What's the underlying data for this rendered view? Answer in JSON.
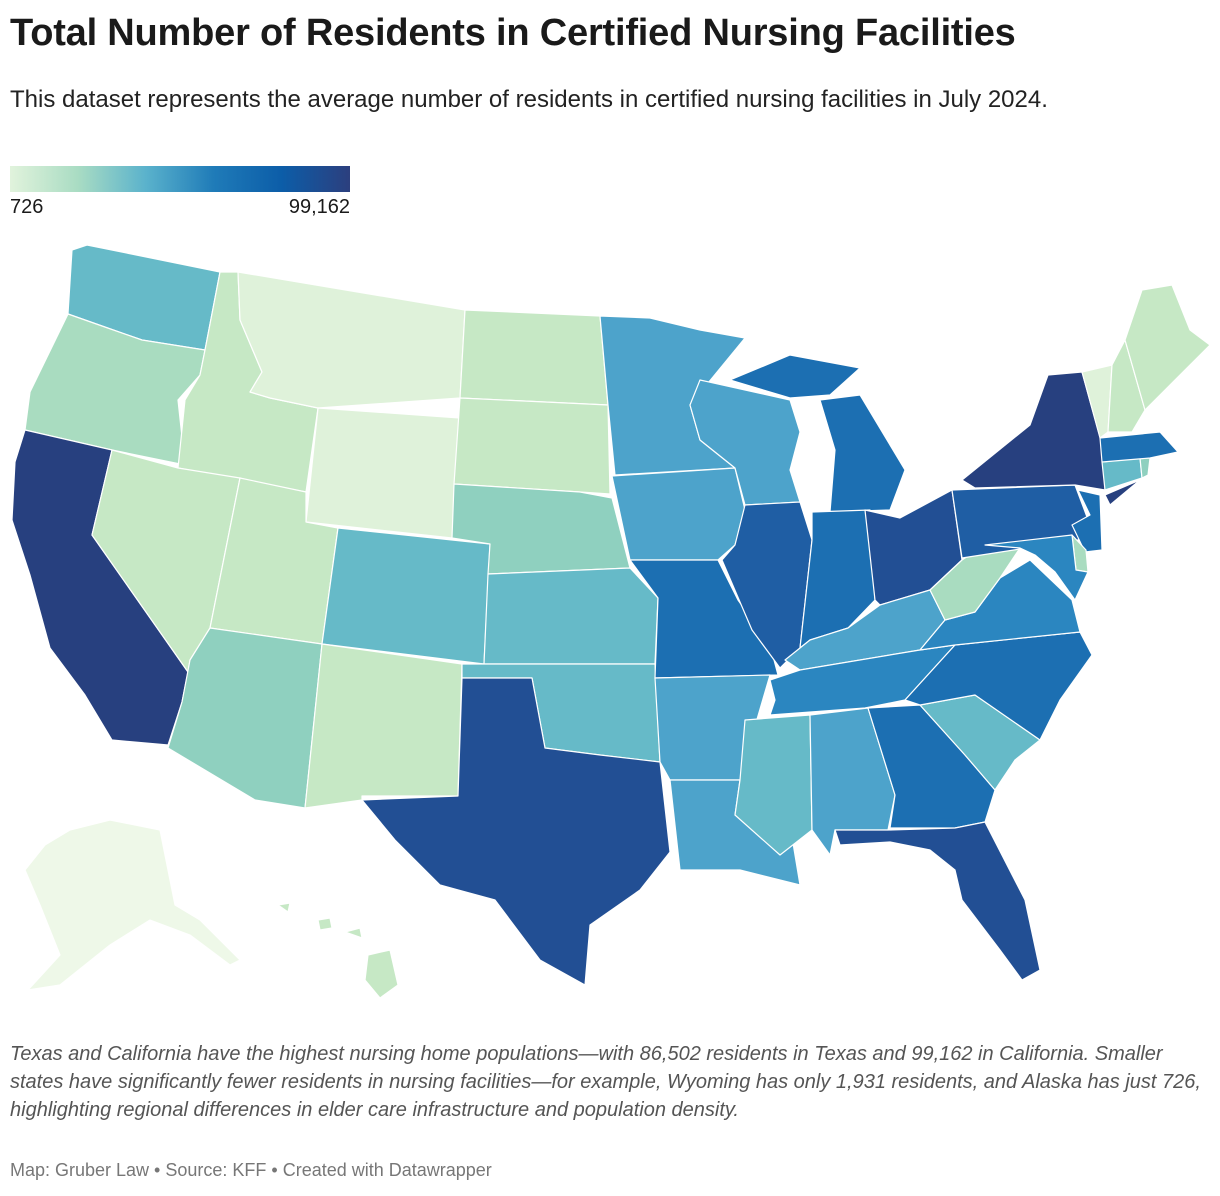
{
  "title": "Total Number of Residents in Certified Nursing Facilities",
  "subtitle": "This dataset represents the average number of residents in certified nursing facilities in July 2024.",
  "legend": {
    "min_label": "726",
    "max_label": "99,162",
    "min": 726,
    "max": 99162
  },
  "colors": {
    "c1": "#eef8e8",
    "c2": "#dff2da",
    "c3": "#c6e8c5",
    "c4": "#a9dcc0",
    "c5": "#8fd0bf",
    "c6": "#66bac8",
    "c7": "#4da3cb",
    "c8": "#2b86c0",
    "c9": "#1c6fb2",
    "c10": "#1f5ea4",
    "c11": "#224f94",
    "c12": "#27407f"
  },
  "caption": "Texas and California have the highest nursing home populations—with 86,502 residents in Texas and 99,162 in California. Smaller states have significantly fewer residents in nursing facilities—for example, Wyoming has only 1,931 residents, and Alaska has just 726, highlighting regional differences in elder care infrastructure and population density.",
  "footer": "Map: Gruber Law  • Source: KFF • Created with Datawrapper",
  "states": [
    {
      "id": "WA",
      "shade": "c6"
    },
    {
      "id": "OR",
      "shade": "c4"
    },
    {
      "id": "CA",
      "shade": "c12"
    },
    {
      "id": "ID",
      "shade": "c3"
    },
    {
      "id": "NV",
      "shade": "c3"
    },
    {
      "id": "MT",
      "shade": "c2"
    },
    {
      "id": "WY",
      "shade": "c2"
    },
    {
      "id": "UT",
      "shade": "c3"
    },
    {
      "id": "AZ",
      "shade": "c5"
    },
    {
      "id": "CO",
      "shade": "c6"
    },
    {
      "id": "NM",
      "shade": "c3"
    },
    {
      "id": "ND",
      "shade": "c3"
    },
    {
      "id": "SD",
      "shade": "c3"
    },
    {
      "id": "NE",
      "shade": "c5"
    },
    {
      "id": "KS",
      "shade": "c6"
    },
    {
      "id": "OK",
      "shade": "c6"
    },
    {
      "id": "TX",
      "shade": "c11"
    },
    {
      "id": "MN",
      "shade": "c7"
    },
    {
      "id": "IA",
      "shade": "c7"
    },
    {
      "id": "MO",
      "shade": "c9"
    },
    {
      "id": "AR",
      "shade": "c7"
    },
    {
      "id": "LA",
      "shade": "c7"
    },
    {
      "id": "WI",
      "shade": "c7"
    },
    {
      "id": "IL",
      "shade": "c10"
    },
    {
      "id": "MI",
      "shade": "c9"
    },
    {
      "id": "IN",
      "shade": "c9"
    },
    {
      "id": "OH",
      "shade": "c11"
    },
    {
      "id": "KY",
      "shade": "c7"
    },
    {
      "id": "TN",
      "shade": "c8"
    },
    {
      "id": "MS",
      "shade": "c6"
    },
    {
      "id": "AL",
      "shade": "c7"
    },
    {
      "id": "GA",
      "shade": "c9"
    },
    {
      "id": "FL",
      "shade": "c11"
    },
    {
      "id": "SC",
      "shade": "c6"
    },
    {
      "id": "NC",
      "shade": "c9"
    },
    {
      "id": "VA",
      "shade": "c8"
    },
    {
      "id": "WV",
      "shade": "c4"
    },
    {
      "id": "PA",
      "shade": "c10"
    },
    {
      "id": "NY",
      "shade": "c12"
    },
    {
      "id": "NJ",
      "shade": "c9"
    },
    {
      "id": "DE",
      "shade": "c4"
    },
    {
      "id": "MD",
      "shade": "c8"
    },
    {
      "id": "CT",
      "shade": "c6"
    },
    {
      "id": "RI",
      "shade": "c5"
    },
    {
      "id": "MA",
      "shade": "c9"
    },
    {
      "id": "VT",
      "shade": "c2"
    },
    {
      "id": "NH",
      "shade": "c3"
    },
    {
      "id": "ME",
      "shade": "c3"
    },
    {
      "id": "AK",
      "shade": "c1"
    },
    {
      "id": "HI",
      "shade": "c3"
    }
  ]
}
